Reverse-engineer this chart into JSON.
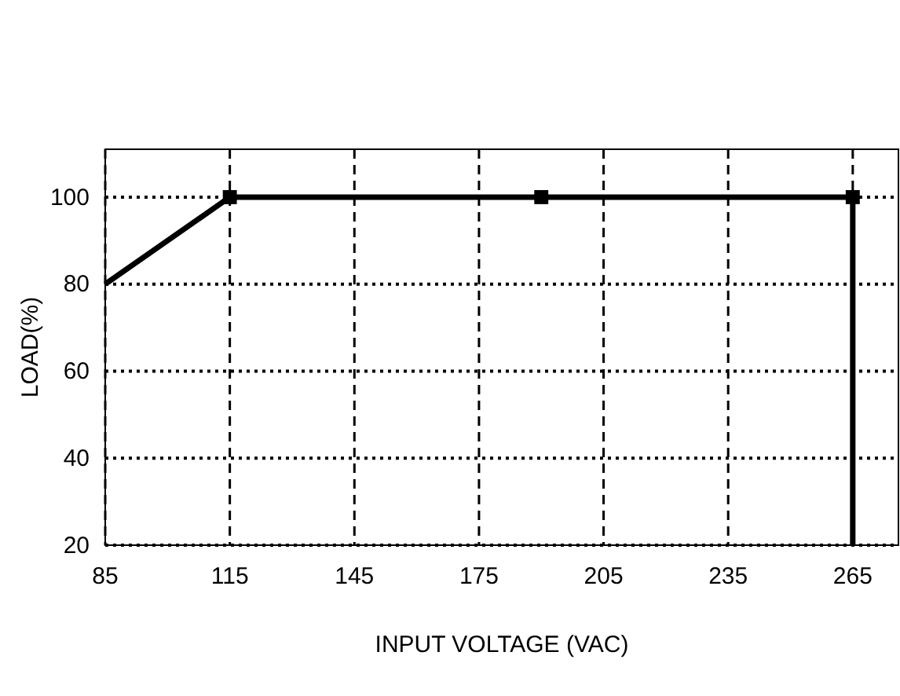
{
  "chart_data": {
    "type": "line",
    "xlabel": "INPUT VOLTAGE (VAC)",
    "ylabel": "LOAD(%)",
    "xlim": [
      85,
      276
    ],
    "ylim": [
      20,
      111
    ],
    "xticks": [
      85,
      115,
      145,
      175,
      205,
      235,
      265
    ],
    "yticks": [
      20,
      40,
      60,
      80,
      100
    ],
    "grid": true,
    "series": [
      {
        "color": "#000000",
        "x": [
          85,
          115,
          190,
          265,
          265
        ],
        "values": [
          80,
          100,
          100,
          100,
          20
        ],
        "marker": "none"
      },
      {
        "type": "scatter",
        "color": "#000000",
        "x": [
          115,
          190,
          265
        ],
        "values": [
          100,
          100,
          100
        ],
        "marker": "square"
      }
    ]
  }
}
